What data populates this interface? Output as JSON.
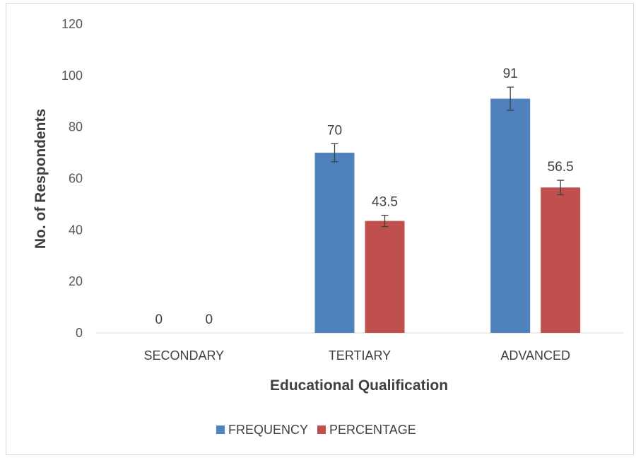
{
  "chart_data": {
    "type": "bar",
    "categories": [
      "SECONDARY",
      "TERTIARY",
      "ADVANCED"
    ],
    "series": [
      {
        "name": "FREQUENCY",
        "values": [
          0,
          70,
          91
        ],
        "errors": [
          0,
          3.5,
          4.5
        ],
        "color": "#4f81bd"
      },
      {
        "name": "PERCENTAGE",
        "values": [
          0,
          43.5,
          56.5
        ],
        "errors": [
          0,
          2.2,
          2.8
        ],
        "color": "#c0504d"
      }
    ],
    "data_labels": [
      [
        "0",
        "70",
        "91"
      ],
      [
        "0",
        "43.5",
        "56.5"
      ]
    ],
    "title": "",
    "xlabel": "Educational Qualification",
    "ylabel": "No. of Respondents",
    "ylim": [
      0,
      120
    ],
    "yticks": [
      "0",
      "20",
      "40",
      "60",
      "80",
      "100",
      "120"
    ],
    "grid": false,
    "legend_position": "bottom"
  }
}
